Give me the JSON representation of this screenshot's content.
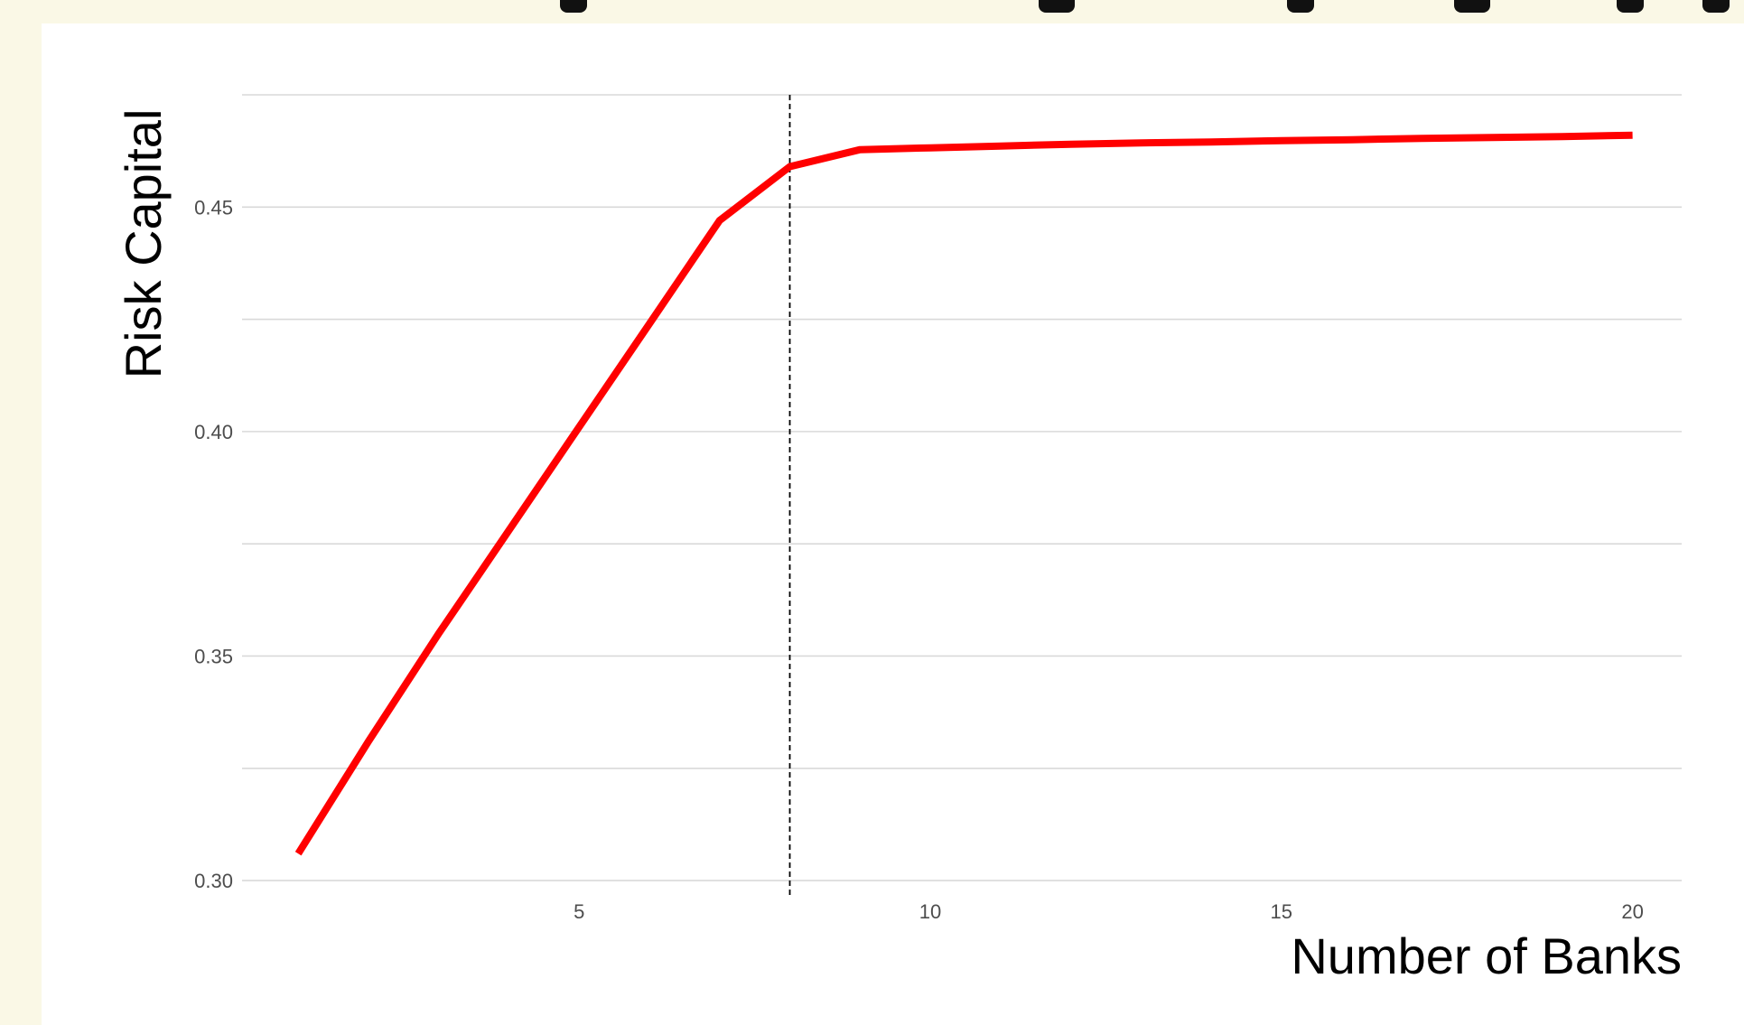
{
  "chart_data": {
    "type": "line",
    "title": "",
    "xlabel": "Number of Banks",
    "ylabel": "Risk Capital",
    "xlim": [
      0.2,
      20.7
    ],
    "ylim": [
      0.298,
      0.475
    ],
    "x_ticks": [
      5,
      10,
      15,
      20
    ],
    "x_tick_labels": [
      "5",
      "10",
      "15",
      "20"
    ],
    "y_ticks": [
      0.3,
      0.35,
      0.4,
      0.45
    ],
    "y_tick_labels": [
      "0.30",
      "0.35",
      "0.40",
      "0.45"
    ],
    "grid": "horizontal major and minor lines",
    "series": [
      {
        "color": "#ff0000",
        "x": [
          1,
          2,
          3,
          4,
          5,
          6,
          7,
          8,
          9,
          10,
          11,
          12,
          13,
          14,
          15,
          16,
          17,
          18,
          19,
          20
        ],
        "y": [
          0.306,
          0.331,
          0.355,
          0.378,
          0.401,
          0.424,
          0.447,
          0.459,
          0.4628,
          0.4632,
          0.4636,
          0.464,
          0.4643,
          0.4645,
          0.4648,
          0.465,
          0.4653,
          0.4655,
          0.4657,
          0.466
        ]
      }
    ],
    "vline": {
      "x": 8,
      "style": "dashed",
      "color": "#000000"
    }
  }
}
